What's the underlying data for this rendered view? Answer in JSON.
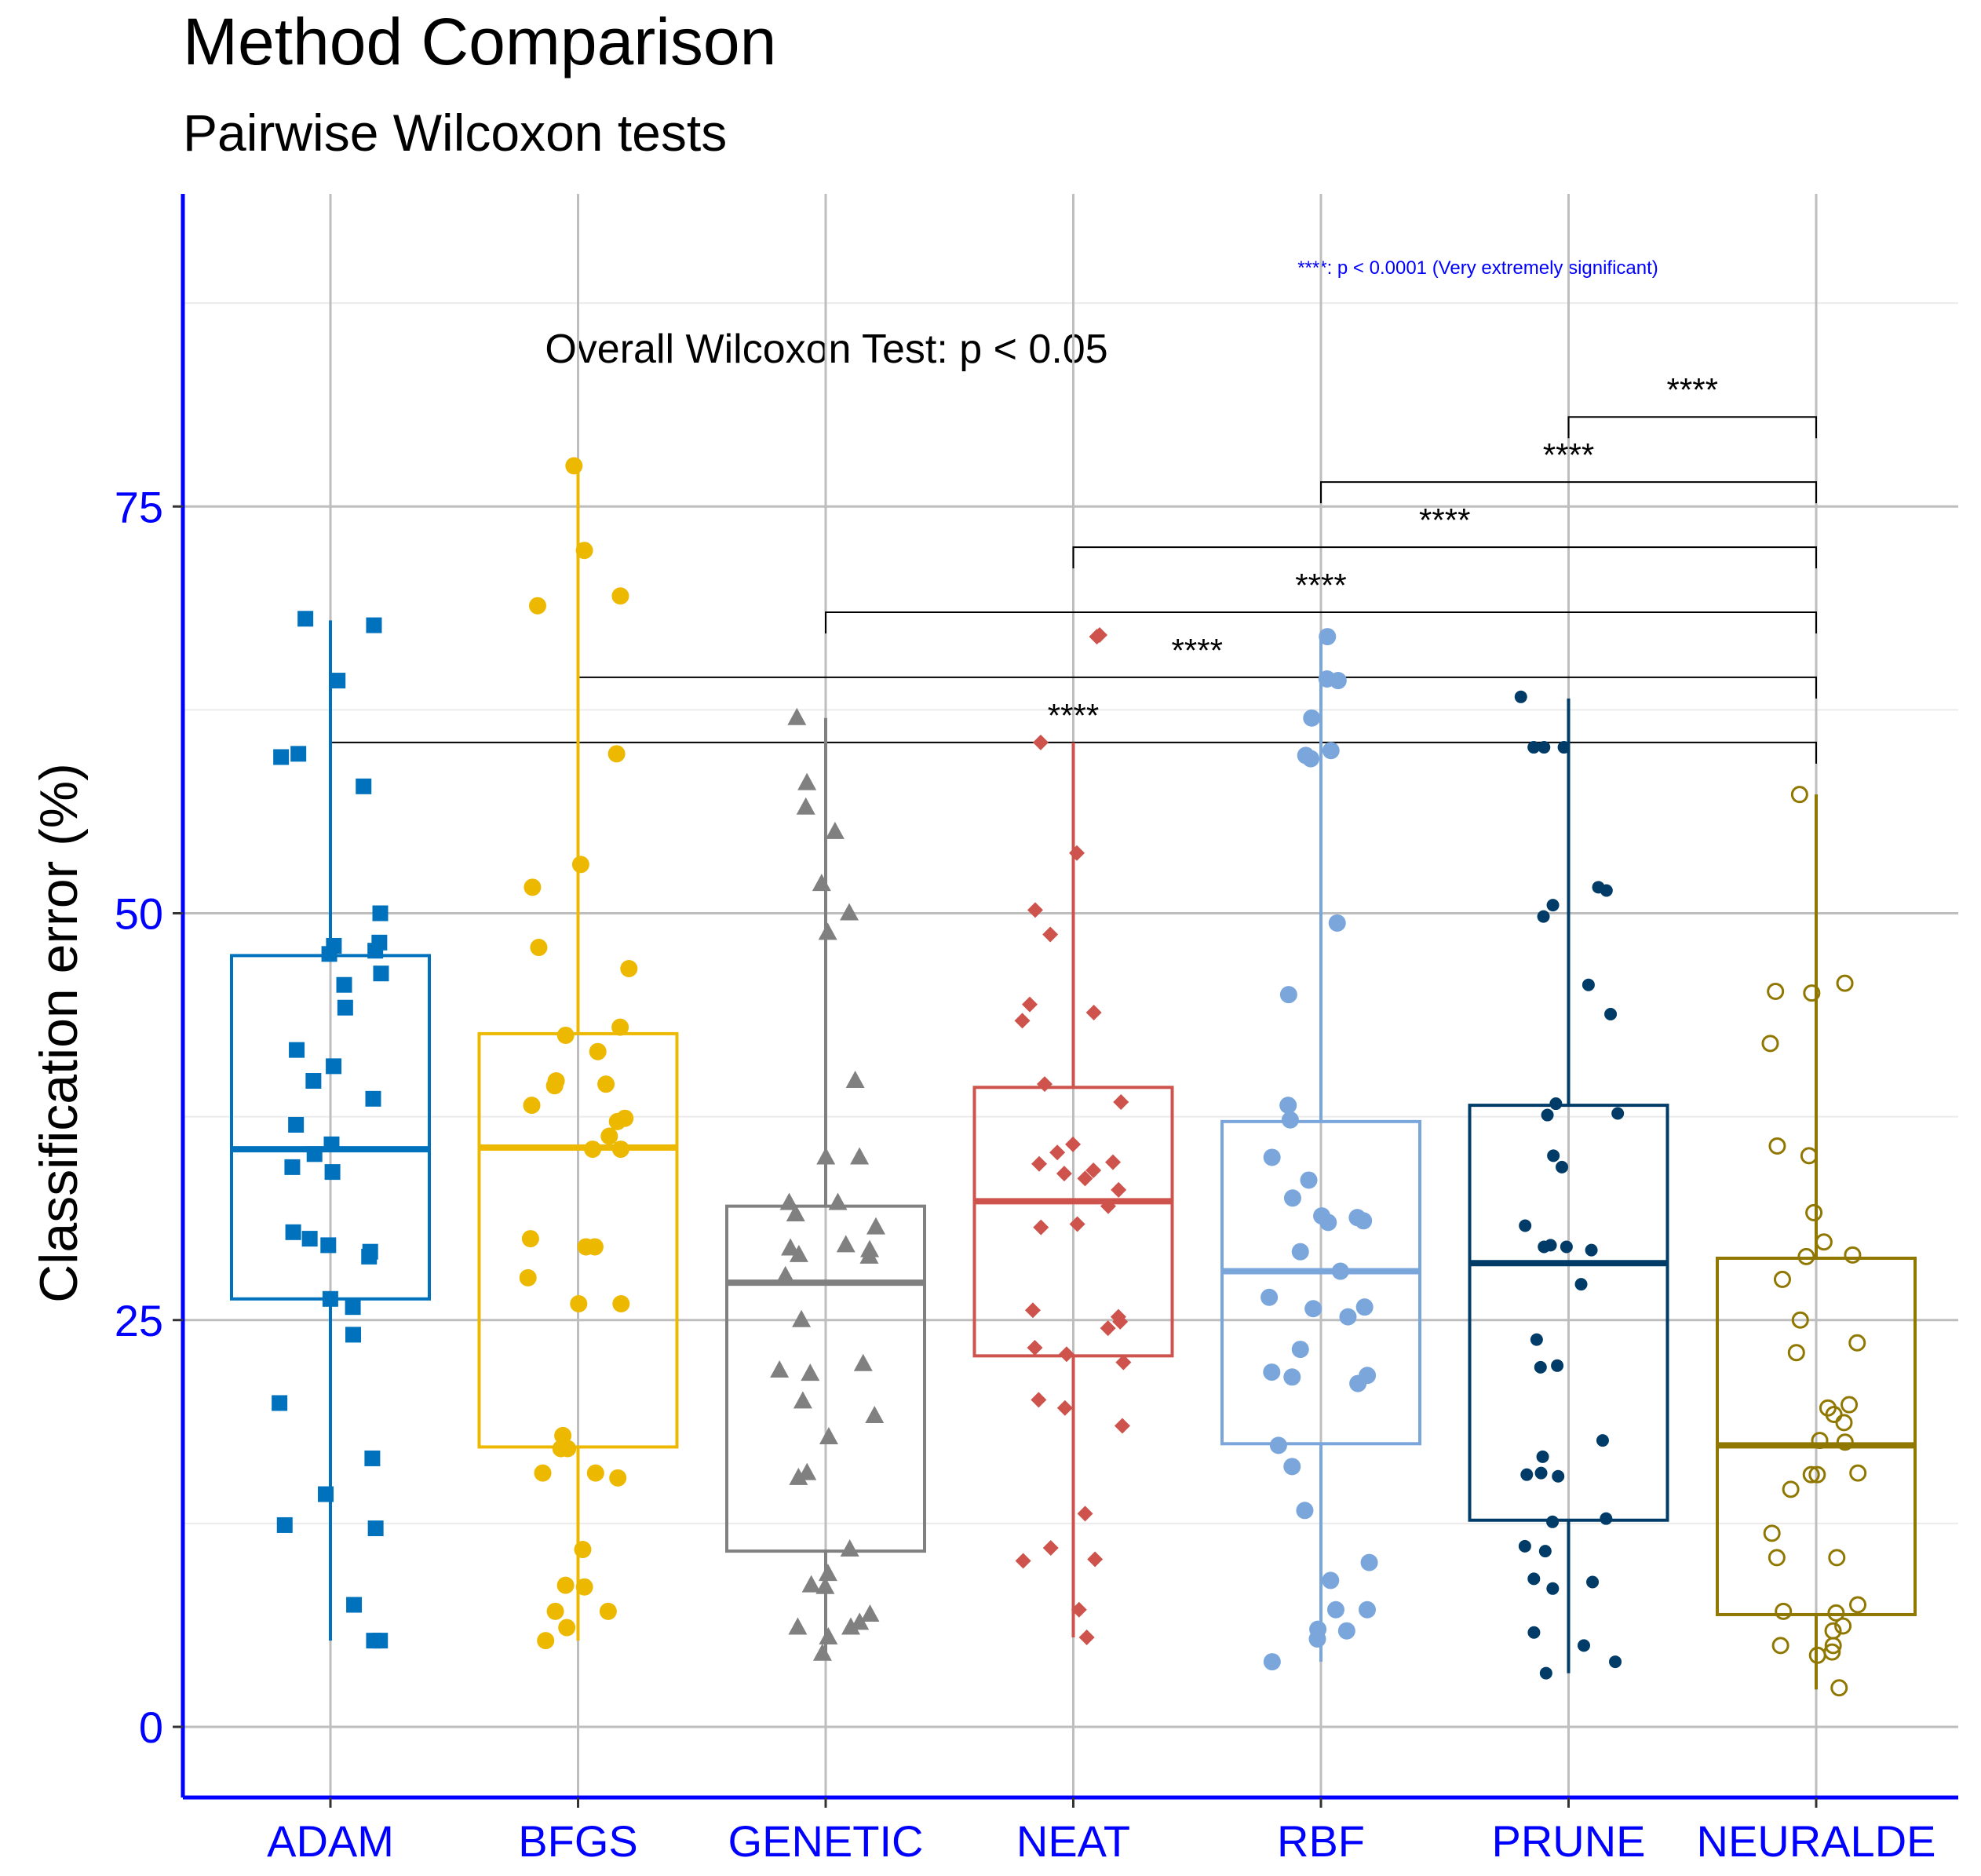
{
  "chart_data": {
    "type": "boxplot",
    "title": "Method Comparison",
    "subtitle": "Pairwise Wilcoxon tests",
    "xlabel": "",
    "ylabel": "Classification error (%)",
    "ylim": [
      -4.5,
      95
    ],
    "yticks": [
      0,
      25,
      50,
      75
    ],
    "categories": [
      "ADAM",
      "BFGS",
      "GENETIC",
      "NEAT",
      "RBF",
      "PRUNE",
      "NEURALDE"
    ],
    "colors": [
      "#0072BD",
      "#EDB800",
      "#808080",
      "#CD534C",
      "#7AA6DC",
      "#003C67",
      "#8F7700"
    ],
    "axis_color": "#0000FF",
    "markers": [
      "square",
      "circle",
      "triangle",
      "diamond",
      "circle",
      "circle-small",
      "circle-open"
    ],
    "boxes": [
      {
        "name": "ADAM",
        "q1": 26.3,
        "median": 35.5,
        "q3": 47.4,
        "whisker_low": 5.3,
        "whisker_high": 68.0
      },
      {
        "name": "BFGS",
        "q1": 17.2,
        "median": 35.6,
        "q3": 42.6,
        "whisker_low": 5.3,
        "whisker_high": 77.5
      },
      {
        "name": "GENETIC",
        "q1": 10.8,
        "median": 27.3,
        "q3": 32.0,
        "whisker_low": 4.5,
        "whisker_high": 62.0
      },
      {
        "name": "NEAT",
        "q1": 22.8,
        "median": 32.3,
        "q3": 39.3,
        "whisker_low": 5.5,
        "whisker_high": 60.5
      },
      {
        "name": "RBF",
        "q1": 17.4,
        "median": 28.0,
        "q3": 37.2,
        "whisker_low": 4.0,
        "whisker_high": 67.0
      },
      {
        "name": "PRUNE",
        "q1": 12.7,
        "median": 28.5,
        "q3": 38.2,
        "whisker_low": 3.3,
        "whisker_high": 63.2
      },
      {
        "name": "NEURALDE",
        "q1": 6.9,
        "median": 17.3,
        "q3": 28.8,
        "whisker_low": 2.3,
        "whisker_high": 57.3
      }
    ],
    "points": [
      [
        68.1,
        67.7,
        64.3,
        59.8,
        59.6,
        57.8,
        50.0,
        48.2,
        48.0,
        47.7,
        47.5,
        46.3,
        45.6,
        44.2,
        41.6,
        40.6,
        39.7,
        38.6,
        37.0,
        35.8,
        35.2,
        34.4,
        34.1,
        30.4,
        30.0,
        29.6,
        29.2,
        28.9,
        26.3,
        25.8,
        24.1,
        19.9,
        16.5,
        14.3,
        12.4,
        12.2,
        7.5,
        5.3,
        5.3
      ],
      [
        77.5,
        72.3,
        69.5,
        68.9,
        59.8,
        53.0,
        51.6,
        47.9,
        46.6,
        43.0,
        42.5,
        41.5,
        39.7,
        39.5,
        39.4,
        38.2,
        37.4,
        37.2,
        36.3,
        35.5,
        35.5,
        30.0,
        29.5,
        29.5,
        27.6,
        26.0,
        26.0,
        17.9,
        17.1,
        17.1,
        15.6,
        15.6,
        15.3,
        10.9,
        8.6,
        8.7,
        7.1,
        7.1,
        6.1,
        5.3
      ],
      [
        62.0,
        58.0,
        56.5,
        55.0,
        51.8,
        50.0,
        48.8,
        39.7,
        35.0,
        35.0,
        32.2,
        32.2,
        31.5,
        30.7,
        29.6,
        29.4,
        29.3,
        29.0,
        28.9,
        27.7,
        25.0,
        22.3,
        21.9,
        21.7,
        20.0,
        19.1,
        17.8,
        15.6,
        15.3,
        10.9,
        9.4,
        8.7,
        8.6,
        6.9,
        6.4,
        6.1,
        6.1,
        5.5,
        4.5
      ],
      [
        67.1,
        67.0,
        60.5,
        53.7,
        50.2,
        48.7,
        44.4,
        43.9,
        43.4,
        39.5,
        38.4,
        35.8,
        35.3,
        34.7,
        34.6,
        34.2,
        34.0,
        33.7,
        33.0,
        32.0,
        30.9,
        30.7,
        25.6,
        25.2,
        24.9,
        24.5,
        23.3,
        22.9,
        22.4,
        20.1,
        19.6,
        18.5,
        13.1,
        11.0,
        10.3,
        10.2,
        7.2,
        5.5
      ],
      [
        67.0,
        64.4,
        64.3,
        62.0,
        60.0,
        59.7,
        59.5,
        49.4,
        45.0,
        38.2,
        37.3,
        35.0,
        33.6,
        32.5,
        31.4,
        31.3,
        31.1,
        31.0,
        29.2,
        28.0,
        26.4,
        25.8,
        25.7,
        25.2,
        23.2,
        21.8,
        21.6,
        21.5,
        21.1,
        17.3,
        16.0,
        13.3,
        10.1,
        9.0,
        7.2,
        7.2,
        6.0,
        5.9,
        5.4,
        4.0
      ],
      [
        63.3,
        60.2,
        60.2,
        60.2,
        51.6,
        51.4,
        50.5,
        49.8,
        45.6,
        43.8,
        38.3,
        37.7,
        37.6,
        35.1,
        34.4,
        30.8,
        29.6,
        29.5,
        29.5,
        29.3,
        27.2,
        23.8,
        22.2,
        22.1,
        17.6,
        16.6,
        15.6,
        15.5,
        15.4,
        12.8,
        12.6,
        11.1,
        10.8,
        9.1,
        8.9,
        8.5,
        5.8,
        5.0,
        4.0,
        3.3
      ],
      [
        57.3,
        45.7,
        45.2,
        45.1,
        42.0,
        35.7,
        35.1,
        31.6,
        29.8,
        29.0,
        28.9,
        27.5,
        25.0,
        23.6,
        23.0,
        19.8,
        19.6,
        19.2,
        18.7,
        17.6,
        17.5,
        15.6,
        15.5,
        15.5,
        14.6,
        11.9,
        10.4,
        10.4,
        7.5,
        7.1,
        7.0,
        6.2,
        5.9,
        5.0,
        5.0,
        4.6,
        4.4,
        2.4
      ]
    ],
    "pairwise_comparisons": [
      {
        "group1": "ADAM",
        "group2": "NEURALDE",
        "label": "****",
        "y": 60.5
      },
      {
        "group1": "BFGS",
        "group2": "NEURALDE",
        "label": "****",
        "y": 64.5
      },
      {
        "group1": "GENETIC",
        "group2": "NEURALDE",
        "label": "****",
        "y": 68.5
      },
      {
        "group1": "NEAT",
        "group2": "NEURALDE",
        "label": "****",
        "y": 72.5
      },
      {
        "group1": "RBF",
        "group2": "NEURALDE",
        "label": "****",
        "y": 76.5
      },
      {
        "group1": "PRUNE",
        "group2": "NEURALDE",
        "label": "****",
        "y": 80.5
      }
    ],
    "annotations": {
      "overall": "Overall Wilcoxon Test: p < 0.05",
      "significance_legend": "****: p < 0.0001 (Very extremely significant)"
    }
  }
}
